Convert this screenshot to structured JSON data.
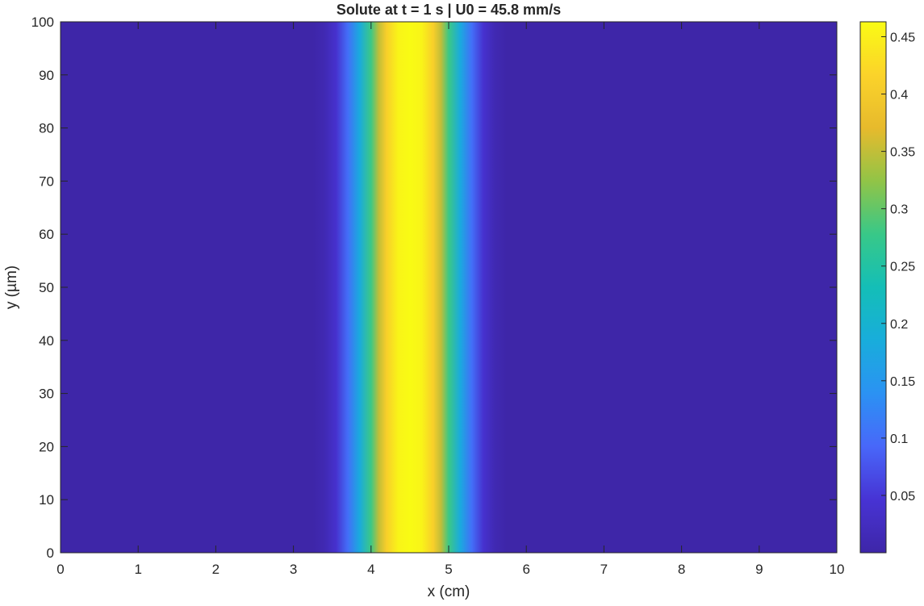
{
  "chart_data": {
    "type": "heatmap",
    "title": "Solute at t = 1 s | U0 = 45.8 mm/s",
    "xlabel": "x (cm)",
    "ylabel": "y (µm)",
    "xlim": [
      0,
      10
    ],
    "ylim": [
      0,
      100
    ],
    "x_ticks": [
      0,
      1,
      2,
      3,
      4,
      5,
      6,
      7,
      8,
      9,
      10
    ],
    "y_ticks": [
      0,
      10,
      20,
      30,
      40,
      50,
      60,
      70,
      80,
      90,
      100
    ],
    "colormap": "parula",
    "colorbar": {
      "range": [
        0,
        0.463
      ],
      "ticks": [
        "0.05",
        "0.1",
        "0.15",
        "0.2",
        "0.25",
        "0.3",
        "0.35",
        "0.4",
        "0.45"
      ]
    },
    "profile_description": "Concentration uniform in y, Gaussian-like band in x",
    "profile_x": [
      0,
      3.25,
      3.4,
      3.55,
      3.7,
      3.85,
      4.0,
      4.1,
      4.2,
      4.35,
      4.5,
      4.65,
      4.8,
      4.9,
      5.0,
      5.15,
      5.3,
      5.45,
      5.6,
      5.75,
      10
    ],
    "profile_values": [
      0.0,
      0.0,
      0.01,
      0.04,
      0.1,
      0.18,
      0.28,
      0.35,
      0.41,
      0.455,
      0.463,
      0.455,
      0.41,
      0.35,
      0.28,
      0.18,
      0.1,
      0.04,
      0.01,
      0.0,
      0.0
    ]
  }
}
